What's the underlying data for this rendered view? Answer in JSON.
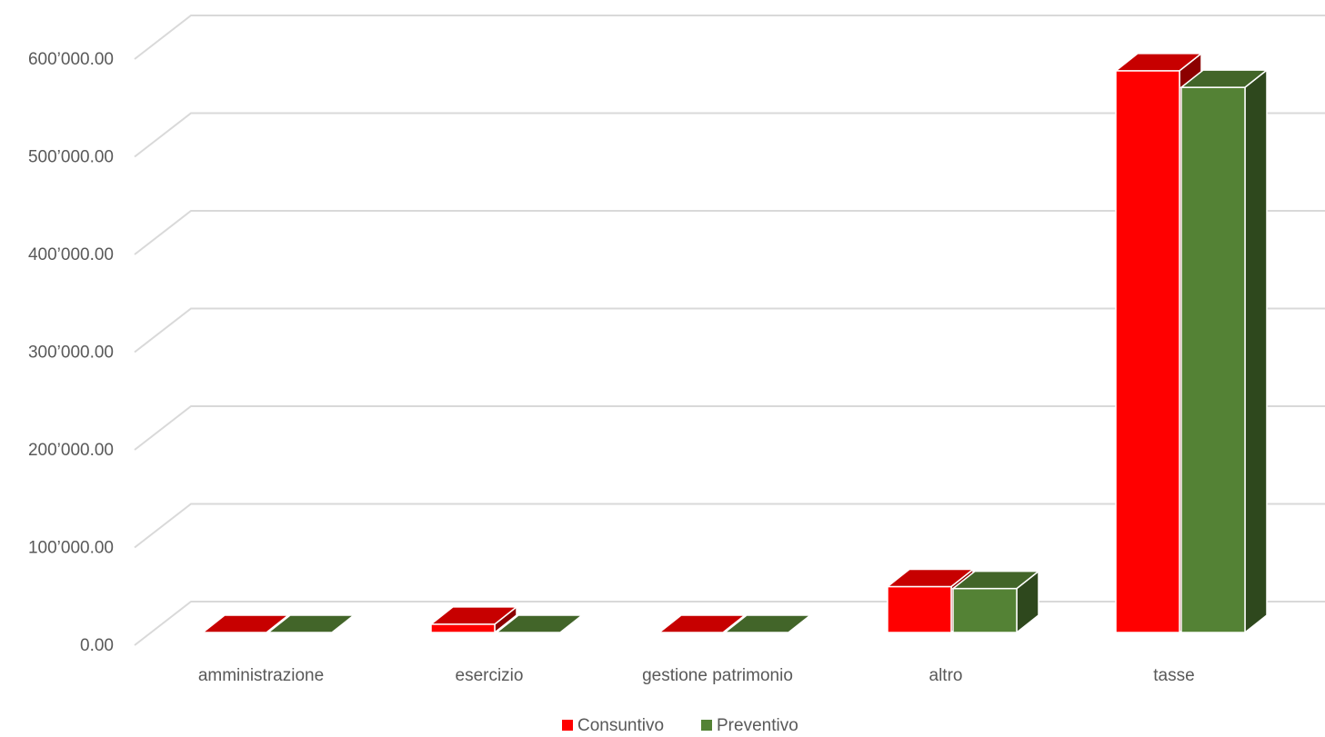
{
  "chart_data": {
    "type": "bar",
    "style": "3d-clustered-column",
    "categories": [
      "amministrazione",
      "esercizio",
      "gestione patrimonio",
      "altro",
      "tasse"
    ],
    "series": [
      {
        "name": "Consuntivo",
        "color": "#ff0000",
        "values": [
          0,
          8500,
          0,
          47000,
          575000
        ]
      },
      {
        "name": "Preventivo",
        "color": "#548235",
        "values": [
          0,
          0,
          0,
          45000,
          558000
        ]
      }
    ],
    "y_ticks": [
      "0.00",
      "100’000.00",
      "200’000.00",
      "300’000.00",
      "400’000.00",
      "500’000.00",
      "600’000.00"
    ],
    "ylim": [
      0,
      650000
    ],
    "grid": true,
    "legend_position": "bottom",
    "title": "",
    "xlabel": "",
    "ylabel": ""
  }
}
